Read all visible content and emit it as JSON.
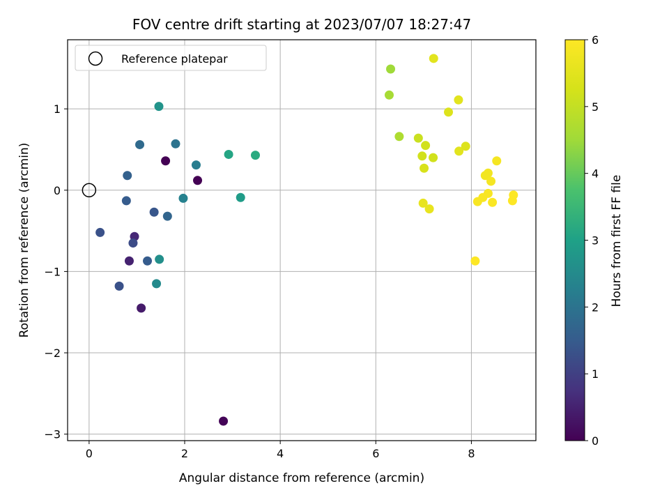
{
  "chart_data": {
    "type": "scatter",
    "title": "FOV centre drift starting at 2023/07/07 18:27:47",
    "xlabel": "Angular distance from reference (arcmin)",
    "ylabel": "Rotation from reference (arcmin)",
    "xlim": [
      -0.45,
      9.35
    ],
    "ylim": [
      -3.08,
      1.85
    ],
    "xticks": [
      0,
      2,
      4,
      6,
      8
    ],
    "yticks": [
      -3,
      -2,
      -1,
      0,
      1
    ],
    "grid": true,
    "legend": {
      "position": "top-left",
      "entries": [
        "Reference platepar"
      ]
    },
    "reference_point": {
      "x": 0,
      "y": 0
    },
    "colorbar": {
      "label": "Hours from first FF file",
      "range": [
        0,
        6
      ],
      "ticks": [
        0,
        1,
        2,
        3,
        4,
        5,
        6
      ],
      "colormap": "viridis"
    },
    "points": [
      {
        "x": 1.6,
        "y": 0.36,
        "c": 0.0
      },
      {
        "x": 2.27,
        "y": 0.12,
        "c": 0.0
      },
      {
        "x": 2.81,
        "y": -2.84,
        "c": 0.05
      },
      {
        "x": 1.09,
        "y": -1.45,
        "c": 0.4
      },
      {
        "x": 0.84,
        "y": -0.87,
        "c": 0.5
      },
      {
        "x": 0.95,
        "y": -0.57,
        "c": 0.6
      },
      {
        "x": 0.92,
        "y": -0.65,
        "c": 1.2
      },
      {
        "x": 0.23,
        "y": -0.52,
        "c": 1.3
      },
      {
        "x": 0.63,
        "y": -1.18,
        "c": 1.3
      },
      {
        "x": 1.36,
        "y": -0.27,
        "c": 1.4
      },
      {
        "x": 1.22,
        "y": -0.87,
        "c": 1.5
      },
      {
        "x": 0.78,
        "y": -0.13,
        "c": 1.5
      },
      {
        "x": 0.8,
        "y": 0.18,
        "c": 1.6
      },
      {
        "x": 1.64,
        "y": -0.32,
        "c": 1.7
      },
      {
        "x": 1.06,
        "y": 0.56,
        "c": 1.8
      },
      {
        "x": 1.81,
        "y": 0.57,
        "c": 2.0
      },
      {
        "x": 2.24,
        "y": 0.31,
        "c": 2.2
      },
      {
        "x": 1.97,
        "y": -0.1,
        "c": 2.3
      },
      {
        "x": 1.41,
        "y": -1.15,
        "c": 2.5
      },
      {
        "x": 1.47,
        "y": -0.85,
        "c": 2.6
      },
      {
        "x": 1.46,
        "y": 1.03,
        "c": 2.7
      },
      {
        "x": 3.17,
        "y": -0.09,
        "c": 2.9
      },
      {
        "x": 2.92,
        "y": 0.44,
        "c": 3.1
      },
      {
        "x": 3.48,
        "y": 0.43,
        "c": 3.2
      },
      {
        "x": 6.31,
        "y": 1.49,
        "c": 4.5
      },
      {
        "x": 6.28,
        "y": 1.17,
        "c": 4.6
      },
      {
        "x": 6.49,
        "y": 0.66,
        "c": 4.7
      },
      {
        "x": 6.89,
        "y": 0.64,
        "c": 5.1
      },
      {
        "x": 7.04,
        "y": 0.55,
        "c": 5.2
      },
      {
        "x": 6.97,
        "y": 0.42,
        "c": 5.2
      },
      {
        "x": 7.01,
        "y": 0.27,
        "c": 5.3
      },
      {
        "x": 7.2,
        "y": 0.4,
        "c": 5.2
      },
      {
        "x": 7.21,
        "y": 1.62,
        "c": 5.5
      },
      {
        "x": 7.52,
        "y": 0.96,
        "c": 5.4
      },
      {
        "x": 7.73,
        "y": 1.11,
        "c": 5.5
      },
      {
        "x": 7.74,
        "y": 0.48,
        "c": 5.5
      },
      {
        "x": 7.88,
        "y": 0.54,
        "c": 5.4
      },
      {
        "x": 6.99,
        "y": -0.16,
        "c": 5.6
      },
      {
        "x": 7.12,
        "y": -0.23,
        "c": 5.6
      },
      {
        "x": 8.29,
        "y": 0.18,
        "c": 5.8
      },
      {
        "x": 8.35,
        "y": 0.21,
        "c": 5.8
      },
      {
        "x": 8.41,
        "y": 0.11,
        "c": 5.85
      },
      {
        "x": 8.53,
        "y": 0.36,
        "c": 5.85
      },
      {
        "x": 8.13,
        "y": -0.14,
        "c": 5.9
      },
      {
        "x": 8.24,
        "y": -0.09,
        "c": 5.9
      },
      {
        "x": 8.35,
        "y": -0.04,
        "c": 5.9
      },
      {
        "x": 8.44,
        "y": -0.15,
        "c": 5.95
      },
      {
        "x": 8.08,
        "y": -0.87,
        "c": 6.0
      },
      {
        "x": 8.88,
        "y": -0.06,
        "c": 6.0
      },
      {
        "x": 8.86,
        "y": -0.13,
        "c": 6.0
      }
    ]
  }
}
